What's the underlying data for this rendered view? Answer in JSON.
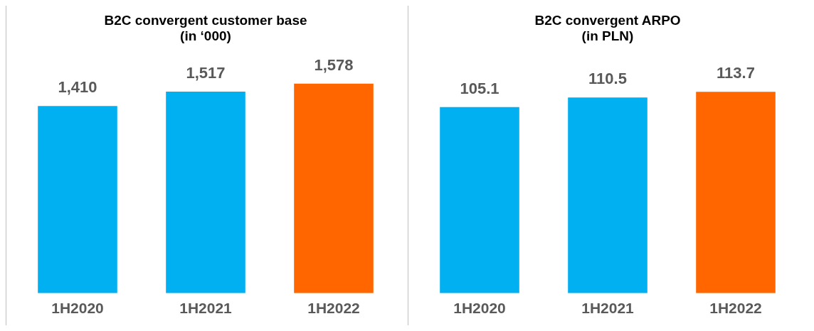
{
  "chart_data": [
    {
      "type": "bar",
      "title": "B2C convergent customer base",
      "subtitle": "(in ‘000)",
      "categories": [
        "1H2020",
        "1H2021",
        "1H2022"
      ],
      "values": [
        1410,
        1517,
        1578
      ],
      "value_labels": [
        "1,410",
        "1,517",
        "1,578"
      ],
      "colors": [
        "#00b0f0",
        "#00b0f0",
        "#ff6600"
      ],
      "grid": false,
      "legend": false,
      "tick_labels": "x"
    },
    {
      "type": "bar",
      "title": "B2C convergent ARPO",
      "subtitle": "(in PLN)",
      "categories": [
        "1H2020",
        "1H2021",
        "1H2022"
      ],
      "values": [
        105.1,
        110.5,
        113.7
      ],
      "data_labels": true,
      "colors": [
        "#00b0f0",
        "#00b0f0",
        "#ff6600"
      ],
      "grid": false,
      "legend": false,
      "tick_labels": "x"
    }
  ]
}
